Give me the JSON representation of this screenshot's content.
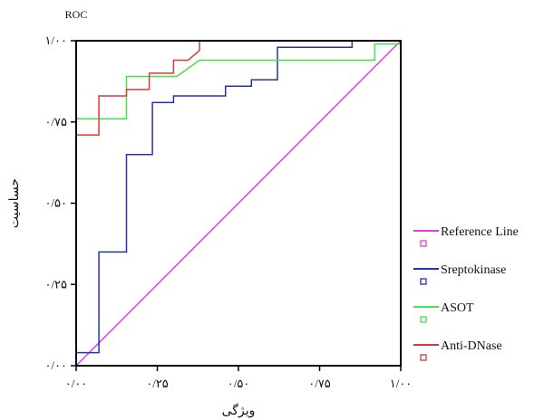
{
  "chart_data": {
    "type": "line",
    "title": "ROC",
    "xlabel": "ویژگی",
    "ylabel": "حساسیت",
    "xlim": [
      0,
      1
    ],
    "ylim": [
      0,
      1
    ],
    "x_ticks": [
      0,
      0.25,
      0.5,
      0.75,
      1
    ],
    "y_ticks": [
      0,
      0.25,
      0.5,
      0.75,
      1
    ],
    "x_tick_labels": [
      "۰/۰۰",
      "۰/۲۵",
      "۰/۵۰",
      "۰/۷۵",
      "۱/۰۰"
    ],
    "y_tick_labels": [
      "۰/۰۰",
      "۰/۲۵",
      "۰/۵۰",
      "۰/۷۵",
      "۱/۰۰"
    ],
    "grid": false,
    "legend_position": "right",
    "series": [
      {
        "name": "Reference Line",
        "color": "#e040e0",
        "points": [
          [
            0,
            0
          ],
          [
            1,
            1
          ]
        ]
      },
      {
        "name": "Sreptokinase",
        "color": "#2633a8",
        "points": [
          [
            0,
            0.04
          ],
          [
            0.07,
            0.04
          ],
          [
            0.07,
            0.35
          ],
          [
            0.155,
            0.35
          ],
          [
            0.155,
            0.65
          ],
          [
            0.235,
            0.65
          ],
          [
            0.235,
            0.81
          ],
          [
            0.3,
            0.81
          ],
          [
            0.3,
            0.83
          ],
          [
            0.46,
            0.83
          ],
          [
            0.46,
            0.86
          ],
          [
            0.54,
            0.86
          ],
          [
            0.54,
            0.88
          ],
          [
            0.62,
            0.88
          ],
          [
            0.62,
            0.98
          ],
          [
            0.85,
            0.98
          ],
          [
            0.85,
            1.0
          ],
          [
            1.0,
            1.0
          ]
        ]
      },
      {
        "name": "ASOT",
        "color": "#48e048",
        "points": [
          [
            0,
            0.76
          ],
          [
            0.155,
            0.76
          ],
          [
            0.155,
            0.89
          ],
          [
            0.31,
            0.89
          ],
          [
            0.38,
            0.94
          ],
          [
            0.92,
            0.94
          ],
          [
            0.92,
            0.99
          ],
          [
            1.0,
            0.99
          ]
        ]
      },
      {
        "name": "Anti-DNase",
        "color": "#d83a3a",
        "points": [
          [
            0,
            0.71
          ],
          [
            0.07,
            0.71
          ],
          [
            0.07,
            0.83
          ],
          [
            0.155,
            0.83
          ],
          [
            0.155,
            0.85
          ],
          [
            0.225,
            0.85
          ],
          [
            0.225,
            0.9
          ],
          [
            0.3,
            0.9
          ],
          [
            0.3,
            0.94
          ],
          [
            0.345,
            0.94
          ],
          [
            0.38,
            0.97
          ],
          [
            0.38,
            1.0
          ],
          [
            1.0,
            1.0
          ]
        ]
      }
    ]
  }
}
